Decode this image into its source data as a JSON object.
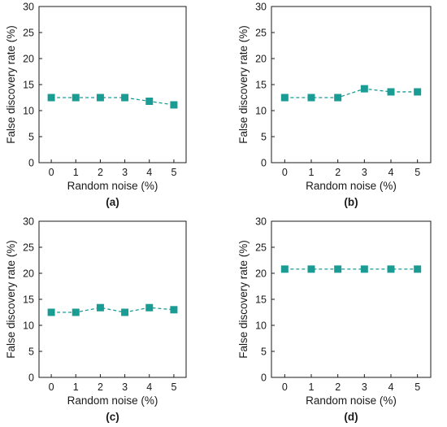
{
  "colors": {
    "series": "#1a9c94",
    "axis": "#1a1a1a",
    "background": "#ffffff"
  },
  "chart_data": [
    {
      "type": "line",
      "panel_label": "(a)",
      "xlabel": "Random noise (%)",
      "ylabel": "False discovery rate (%)",
      "x": [
        0,
        1,
        2,
        3,
        4,
        5
      ],
      "xticks": [
        "0",
        "1",
        "2",
        "3",
        "4",
        "5"
      ],
      "yticks": [
        "0",
        "5",
        "10",
        "15",
        "20",
        "25",
        "30"
      ],
      "xlim": [
        -0.5,
        5.5
      ],
      "ylim": [
        0,
        30
      ],
      "grid": false,
      "series": [
        {
          "values": [
            12.5,
            12.5,
            12.5,
            12.5,
            11.8,
            11.1
          ],
          "marker": "square",
          "line_style": "dashed"
        }
      ]
    },
    {
      "type": "line",
      "panel_label": "(b)",
      "xlabel": "Random noise (%)",
      "ylabel": "False discovery rate (%)",
      "x": [
        0,
        1,
        2,
        3,
        4,
        5
      ],
      "xticks": [
        "0",
        "1",
        "2",
        "3",
        "4",
        "5"
      ],
      "yticks": [
        "0",
        "5",
        "10",
        "15",
        "20",
        "25",
        "30"
      ],
      "xlim": [
        -0.5,
        5.5
      ],
      "ylim": [
        0,
        30
      ],
      "grid": false,
      "series": [
        {
          "values": [
            12.5,
            12.5,
            12.5,
            14.2,
            13.6,
            13.6
          ],
          "marker": "square",
          "line_style": "dashed"
        }
      ]
    },
    {
      "type": "line",
      "panel_label": "(c)",
      "xlabel": "Random noise (%)",
      "ylabel": "False discovery rate (%)",
      "x": [
        0,
        1,
        2,
        3,
        4,
        5
      ],
      "xticks": [
        "0",
        "1",
        "2",
        "3",
        "4",
        "5"
      ],
      "yticks": [
        "0",
        "5",
        "10",
        "15",
        "20",
        "25",
        "30"
      ],
      "xlim": [
        -0.5,
        5.5
      ],
      "ylim": [
        0,
        30
      ],
      "grid": false,
      "series": [
        {
          "values": [
            12.5,
            12.5,
            13.4,
            12.5,
            13.4,
            13.0
          ],
          "marker": "square",
          "line_style": "dashed"
        }
      ]
    },
    {
      "type": "line",
      "panel_label": "(d)",
      "xlabel": "Random noise (%)",
      "ylabel": "False discovery rate (%)",
      "x": [
        0,
        1,
        2,
        3,
        4,
        5
      ],
      "xticks": [
        "0",
        "1",
        "2",
        "3",
        "4",
        "5"
      ],
      "yticks": [
        "0",
        "5",
        "10",
        "15",
        "20",
        "25",
        "30"
      ],
      "xlim": [
        -0.5,
        5.5
      ],
      "ylim": [
        0,
        30
      ],
      "grid": false,
      "series": [
        {
          "values": [
            20.8,
            20.8,
            20.8,
            20.8,
            20.8,
            20.8
          ],
          "marker": "square",
          "line_style": "dashed"
        }
      ]
    }
  ]
}
